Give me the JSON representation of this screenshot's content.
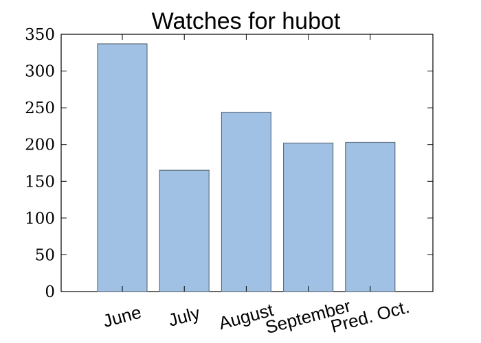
{
  "chart_data": {
    "type": "bar",
    "title": "Watches for hubot",
    "categories": [
      "June",
      "July",
      "August",
      "September",
      "Pred. Oct."
    ],
    "values": [
      337,
      165,
      244,
      202,
      203
    ],
    "xlabel": "",
    "ylabel": "",
    "ylim": [
      0,
      350
    ],
    "yticks": [
      "0",
      "50",
      "100",
      "150",
      "200",
      "250",
      "300",
      "350"
    ],
    "bar_color": "#a0c1e3",
    "edge_color": "#5f6f7f",
    "grid": false,
    "legend": "none"
  }
}
